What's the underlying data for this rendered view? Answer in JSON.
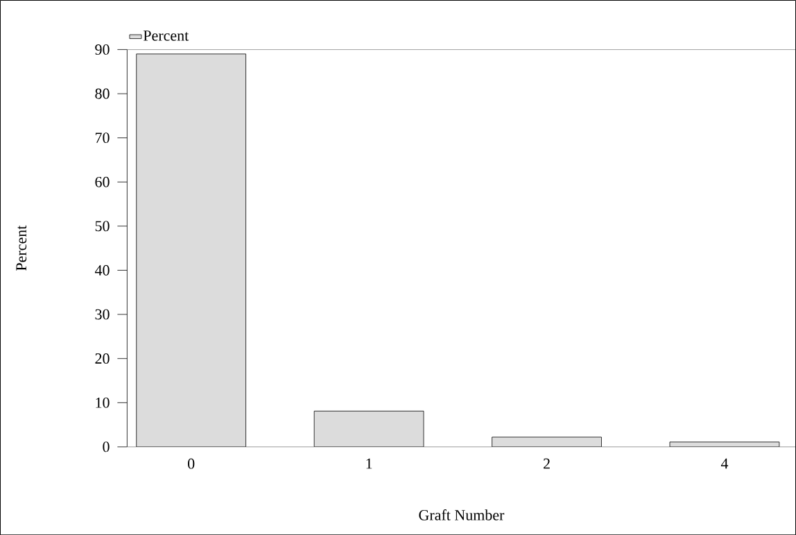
{
  "chart_data": {
    "type": "bar",
    "xlabel": "Graft Number",
    "ylabel": "Percent",
    "categories": [
      "0",
      "1",
      "2",
      "4"
    ],
    "series": [
      {
        "name": "Percent",
        "color": "#dcdcdc",
        "values": [
          89,
          8.1,
          2.2,
          1.1
        ]
      }
    ],
    "ylim": [
      0,
      90
    ],
    "yticks": [
      0,
      10,
      20,
      30,
      40,
      50,
      60,
      70,
      80,
      90
    ],
    "grid": false,
    "legend": "top left"
  }
}
